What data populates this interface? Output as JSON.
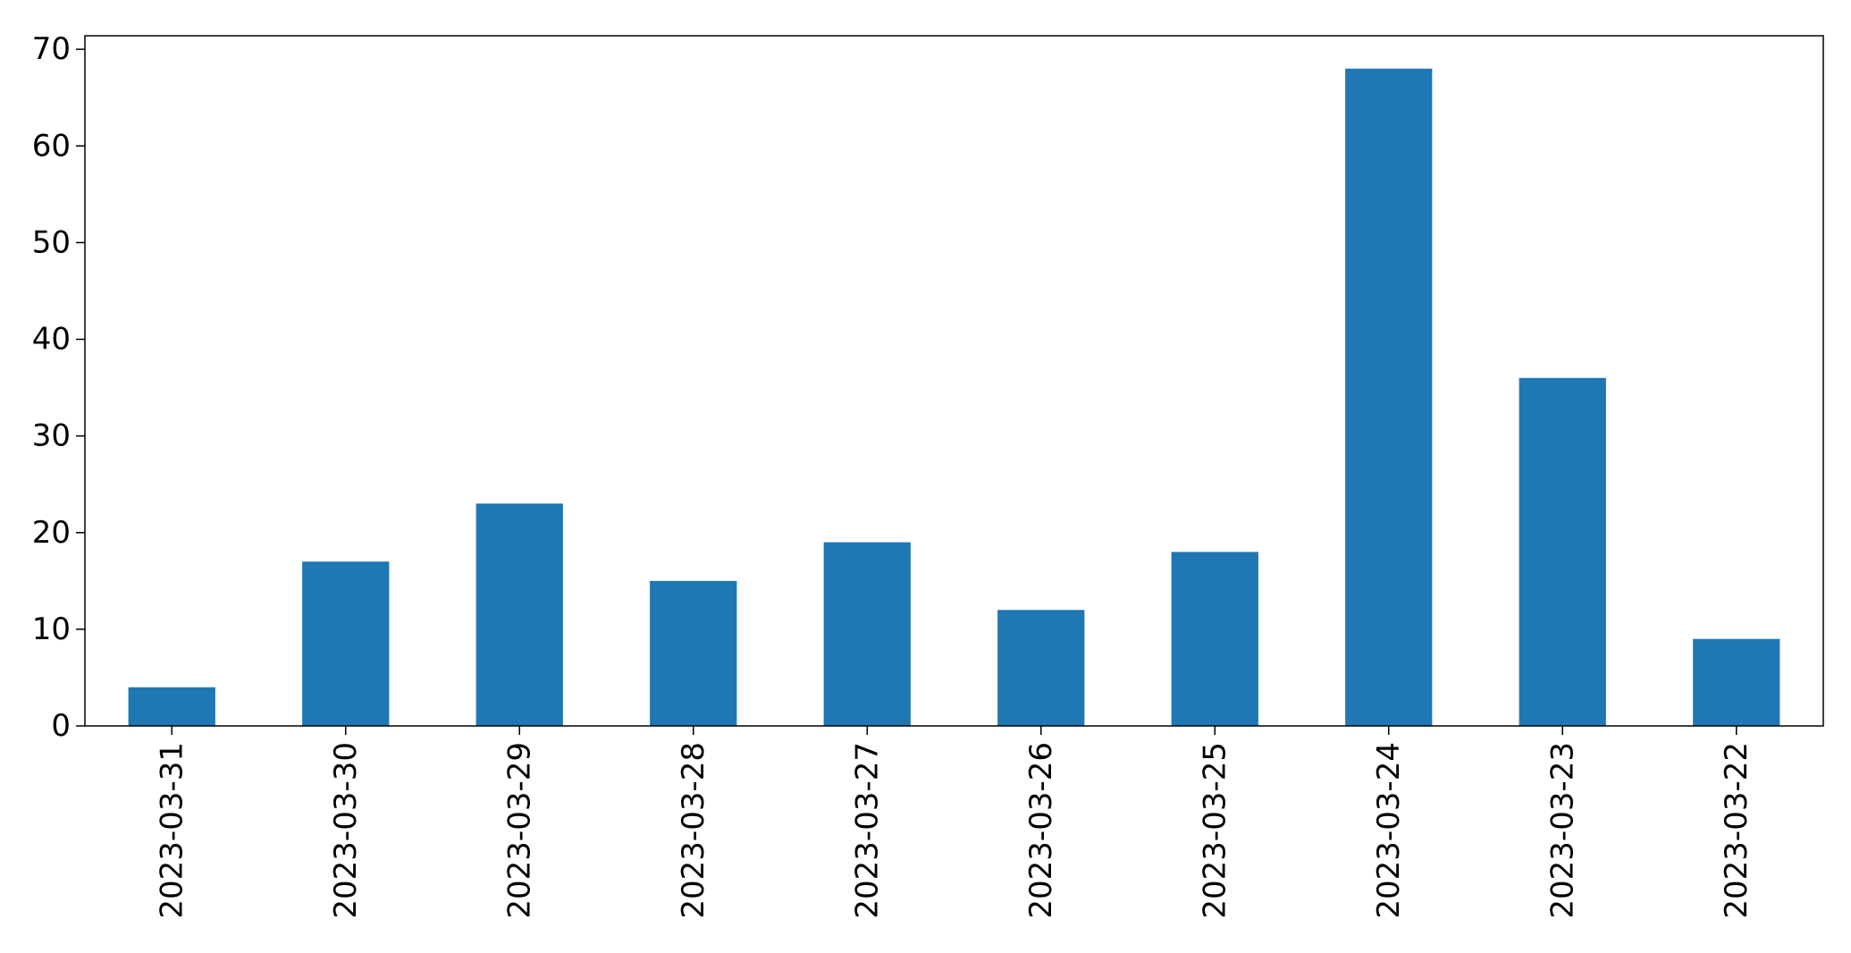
{
  "chart_data": {
    "type": "bar",
    "categories": [
      "2023-03-31",
      "2023-03-30",
      "2023-03-29",
      "2023-03-28",
      "2023-03-27",
      "2023-03-26",
      "2023-03-25",
      "2023-03-24",
      "2023-03-23",
      "2023-03-22"
    ],
    "values": [
      4,
      17,
      23,
      15,
      19,
      12,
      18,
      68,
      36,
      9
    ],
    "title": "",
    "xlabel": "",
    "ylabel": "",
    "ylim": [
      0,
      71.4
    ],
    "yticks": [
      0,
      10,
      20,
      30,
      40,
      50,
      60,
      70
    ],
    "bar_color": "#1f77b4",
    "grid": false,
    "legend": "none"
  }
}
